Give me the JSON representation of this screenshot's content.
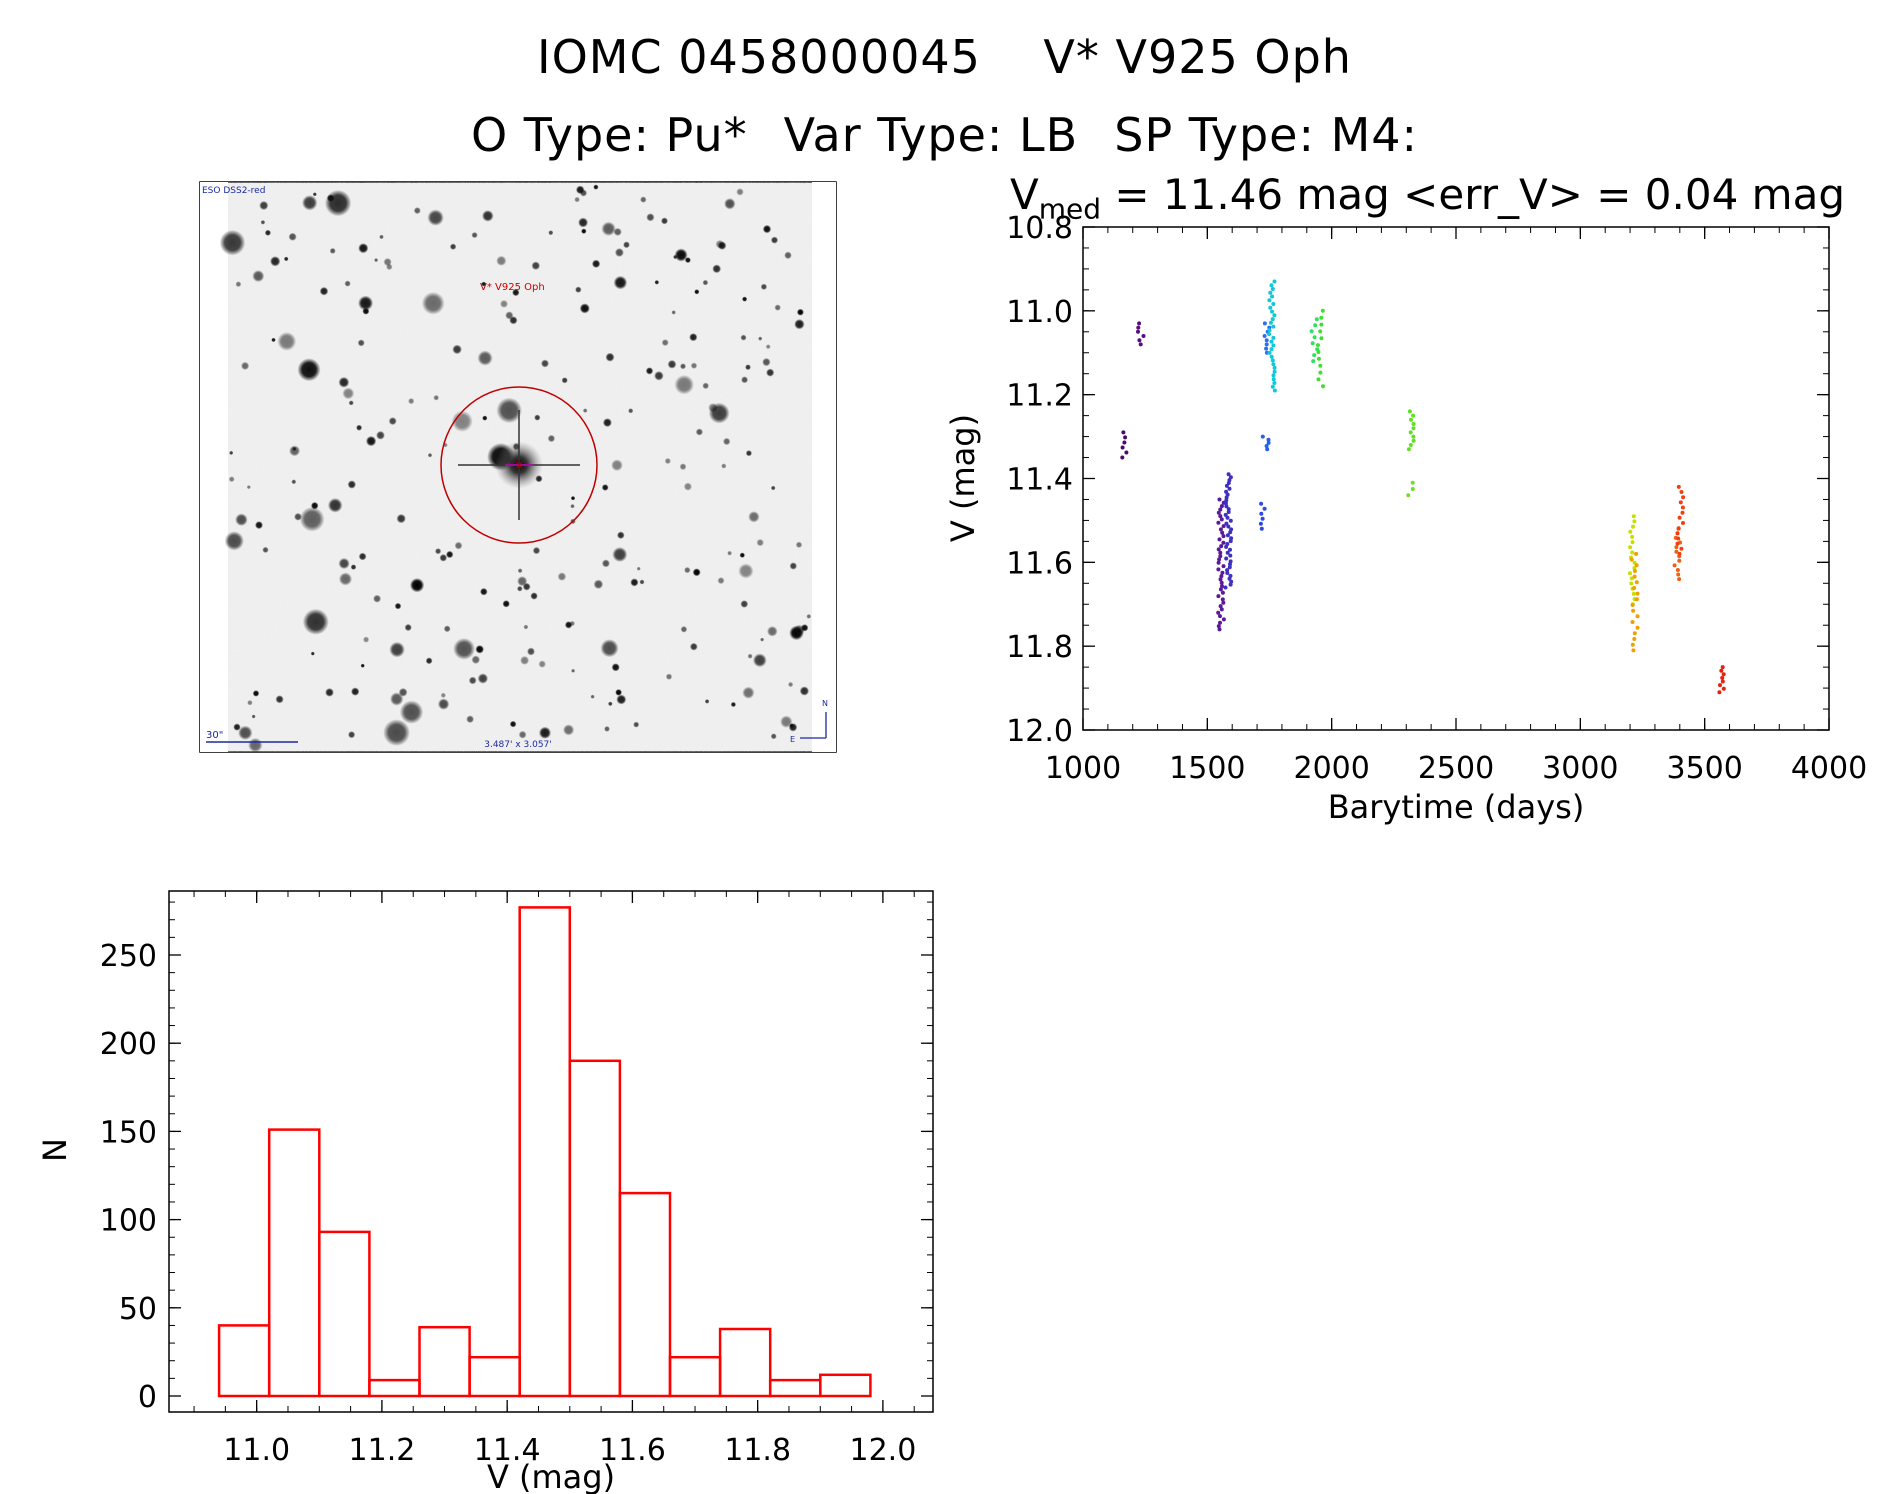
{
  "header": {
    "object_id": "IOMC 0458000045",
    "object_name": "V* V925 Oph",
    "o_type": "O Type: Pu*",
    "var_type": "Var Type: LB",
    "sp_type": "SP Type: M4:"
  },
  "stats": {
    "v_label": "V",
    "v_sub": "med",
    "text": " = 11.46 mag <err_V> = 0.04 mag"
  },
  "image_panel": {
    "survey_label": "ESO DSS2-red",
    "target_label": "V* V925 Oph",
    "scale_label": "30\"",
    "fov_label": "3.487' x 3.057'",
    "north_label": "N",
    "east_label": "E"
  },
  "chart_data": [
    {
      "type": "scatter",
      "xlabel": "Barytime (days)",
      "ylabel": "V (mag)",
      "xlim": [
        1000,
        4000
      ],
      "ylim": [
        12.0,
        10.8
      ],
      "xticks": [
        "1000",
        "1500",
        "2000",
        "2500",
        "3000",
        "3500",
        "4000"
      ],
      "yticks": [
        "10.8",
        "11.0",
        "11.2",
        "11.4",
        "11.6",
        "11.8",
        "12.0"
      ],
      "groups": [
        {
          "x": 1170,
          "ymin": 11.29,
          "ymax": 11.35,
          "color": "#4a0a6e",
          "n": 6
        },
        {
          "x": 1232,
          "ymin": 11.03,
          "ymax": 11.08,
          "color": "#5a0c80",
          "n": 6
        },
        {
          "x": 1555,
          "ymin": 11.45,
          "ymax": 11.76,
          "color": "#5a1a9a",
          "n": 40
        },
        {
          "x": 1585,
          "ymin": 11.39,
          "ymax": 11.66,
          "color": "#4030c0",
          "n": 40
        },
        {
          "x": 1720,
          "ymin": 11.46,
          "ymax": 11.52,
          "color": "#2a4ae0",
          "n": 6
        },
        {
          "x": 1735,
          "ymin": 11.3,
          "ymax": 11.33,
          "color": "#2a60e8",
          "n": 5
        },
        {
          "x": 1742,
          "ymin": 11.03,
          "ymax": 11.1,
          "color": "#2a70f0",
          "n": 8
        },
        {
          "x": 1760,
          "ymin": 10.93,
          "ymax": 11.19,
          "color": "#10c8d8",
          "n": 30
        },
        {
          "x": 1930,
          "ymin": 11.02,
          "ymax": 11.12,
          "color": "#30e060",
          "n": 8
        },
        {
          "x": 1955,
          "ymin": 11.0,
          "ymax": 11.18,
          "color": "#40e030",
          "n": 12
        },
        {
          "x": 2320,
          "ymin": 11.24,
          "ymax": 11.33,
          "color": "#60e020",
          "n": 10
        },
        {
          "x": 2315,
          "ymin": 11.41,
          "ymax": 11.44,
          "color": "#70e020",
          "n": 3
        },
        {
          "x": 3210,
          "ymin": 11.49,
          "ymax": 11.7,
          "color": "#c8e000",
          "n": 18
        },
        {
          "x": 3218,
          "ymin": 11.58,
          "ymax": 11.81,
          "color": "#f0a000",
          "n": 18
        },
        {
          "x": 3390,
          "ymin": 11.52,
          "ymax": 11.64,
          "color": "#f06010",
          "n": 12
        },
        {
          "x": 3402,
          "ymin": 11.42,
          "ymax": 11.58,
          "color": "#f04010",
          "n": 14
        },
        {
          "x": 3570,
          "ymin": 11.85,
          "ymax": 11.91,
          "color": "#e82010",
          "n": 8
        }
      ]
    },
    {
      "type": "bar",
      "xlabel": "V (mag)",
      "ylabel": "N",
      "xlim": [
        10.86,
        12.08
      ],
      "ylim": [
        0,
        290
      ],
      "xticks": [
        "11.0",
        "11.2",
        "11.4",
        "11.6",
        "11.8",
        "12.0"
      ],
      "yticks": [
        "0",
        "50",
        "100",
        "150",
        "200",
        "250"
      ],
      "bin_edges": [
        10.94,
        11.02,
        11.1,
        11.18,
        11.26,
        11.34,
        11.42,
        11.5,
        11.58,
        11.66,
        11.74,
        11.82,
        11.9,
        11.98
      ],
      "values": [
        40,
        151,
        93,
        9,
        39,
        22,
        277,
        190,
        115,
        22,
        38,
        9,
        12
      ],
      "color": "#ff0000"
    }
  ]
}
